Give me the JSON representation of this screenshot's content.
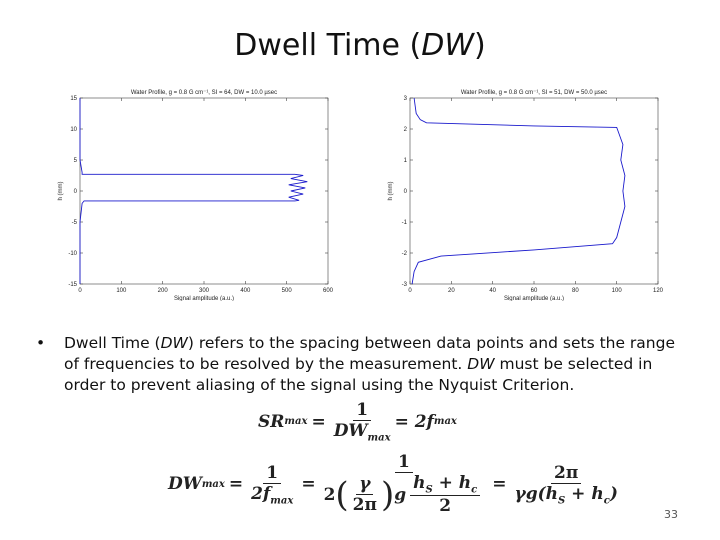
{
  "title": {
    "pre": "Dwell Time (",
    "italic": "DW",
    "post": ")"
  },
  "chart_data": [
    {
      "type": "line",
      "title": "Water Profile, g = 0.8 G cm⁻¹, SI = 64, DW = 10.0 µsec",
      "xlabel": "Signal amplitude (a.u.)",
      "ylabel": "h (mm)",
      "color": "#1a1acc",
      "xlim": [
        0,
        600
      ],
      "ylim": [
        -15,
        15
      ],
      "xticks": [
        0,
        100,
        200,
        300,
        400,
        500,
        600
      ],
      "yticks": [
        -15,
        -10,
        -5,
        0,
        5,
        10,
        15
      ],
      "x": [
        0,
        0,
        0,
        5,
        5,
        520,
        540,
        510,
        550,
        505,
        545,
        510,
        540,
        505,
        530,
        520,
        10,
        5,
        0,
        0,
        0
      ],
      "y": [
        15,
        10,
        5,
        3,
        2.7,
        2.7,
        2.5,
        2.0,
        1.5,
        1.0,
        0.5,
        0,
        -0.5,
        -1.0,
        -1.5,
        -1.6,
        -1.6,
        -2,
        -5,
        -10,
        -15
      ]
    },
    {
      "type": "line",
      "title": "Water Profile, g = 0.8 G cm⁻¹, SI = 51, DW = 50.0 µsec",
      "xlabel": "Signal amplitude (a.u.)",
      "ylabel": "h (mm)",
      "color": "#1a1acc",
      "xlim": [
        0,
        120
      ],
      "ylim": [
        -3,
        3
      ],
      "xticks": [
        0,
        20,
        40,
        60,
        80,
        100,
        120
      ],
      "yticks": [
        -3,
        -2,
        -1,
        0,
        1,
        2,
        3
      ],
      "x": [
        2,
        3,
        5,
        8,
        60,
        100,
        103,
        102,
        104,
        103,
        104,
        102,
        100,
        98,
        60,
        15,
        4,
        2,
        1
      ],
      "y": [
        3,
        2.5,
        2.3,
        2.2,
        2.1,
        2.05,
        1.5,
        1,
        0.5,
        0,
        -0.5,
        -1,
        -1.5,
        -1.7,
        -1.9,
        -2.1,
        -2.3,
        -2.6,
        -3
      ]
    }
  ],
  "bullet": [
    "Dwell Time (",
    "DW",
    ") refers to the spacing between data points and sets the range of frequencies to be resolved by the measurement.  ",
    "DW",
    " must be selected in order to prevent aliasing of the signal using the Nyquist Criterion."
  ],
  "equation_1": {
    "lhs": "SR",
    "lhs_sub": "max",
    "eq": "=",
    "num": "1",
    "den": "DW",
    "den_sub": "max",
    "rhs": "= 2f",
    "rhs_sub": "max"
  },
  "equation_2": {
    "lhs": "DW",
    "lhs_sub": "max",
    "eq1": "=",
    "f1_num": "1",
    "f1_den": "2f",
    "f1_den_sub": "max",
    "eq2": "=",
    "f2_num": "1",
    "f2_den_a": "2",
    "gamma": "γ",
    "two_pi": "2π",
    "g": "g",
    "h_num": "h",
    "hs_sub": "S",
    "plus": " + h",
    "hc_sub": "c",
    "h_den": "2",
    "eq3": "=",
    "f3_num": "2π",
    "f3_den": "γg(h",
    "f3_s": "S",
    "f3_plus": " + h",
    "f3_c": "c",
    "f3_close": ")"
  },
  "page_number": "33"
}
